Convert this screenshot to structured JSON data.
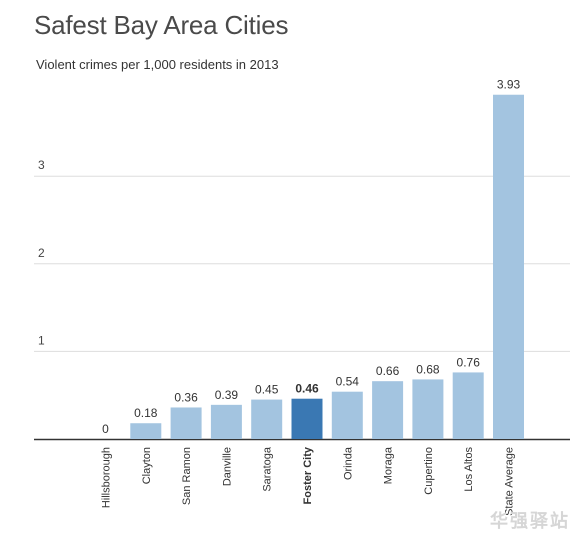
{
  "chart_data": {
    "type": "bar",
    "title": "Safest Bay Area Cities",
    "subtitle": "Violent crimes per 1,000 residents in 2013",
    "xlabel": "",
    "ylabel": "",
    "categories": [
      "Hillsborough",
      "Clayton",
      "San Ramon",
      "Danville",
      "Saratoga",
      "Foster City",
      "Orinda",
      "Moraga",
      "Cupertino",
      "Los Altos",
      "State Average"
    ],
    "values": [
      0,
      0.18,
      0.36,
      0.39,
      0.45,
      0.46,
      0.54,
      0.66,
      0.68,
      0.76,
      3.93
    ],
    "value_labels": [
      "0",
      "0.18",
      "0.36",
      "0.39",
      "0.45",
      "0.46",
      "0.54",
      "0.66",
      "0.68",
      "0.76",
      "3.93"
    ],
    "highlight_category": "Foster City",
    "ylim": [
      0,
      3.93
    ],
    "yticks": [
      1,
      2,
      3
    ],
    "ytick_labels": [
      "1",
      "2",
      "3"
    ],
    "grid": true,
    "colors": {
      "bar": "#a3c4e0",
      "highlight": "#3a78b3",
      "grid": "#dddddd",
      "axis": "#333333"
    }
  },
  "watermark": "华强驿站"
}
